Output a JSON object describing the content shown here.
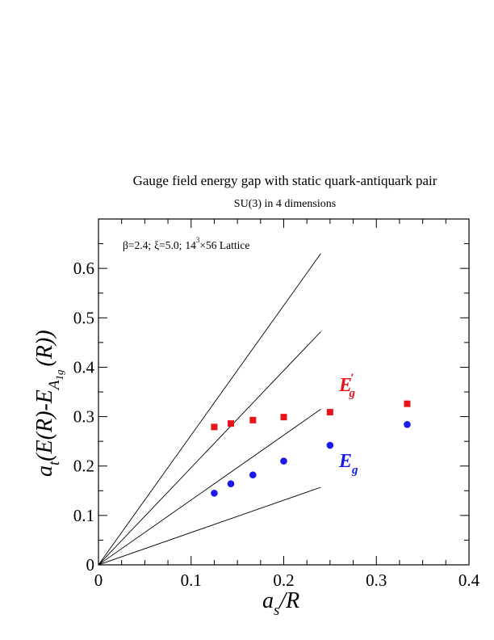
{
  "chart_data": {
    "type": "scatter",
    "title": "Gauge field energy gap with static quark-antiquark pair",
    "subtitle": "SU(3) in 4 dimensions",
    "annotation": {
      "beta": "β=2.4;",
      "xi": "ξ=5.0;",
      "lattice_base": "14",
      "lattice_exp": "3",
      "lattice_rest": "×56 Lattice"
    },
    "xlabel": {
      "main": "a",
      "sub": "s",
      "rest": "/R"
    },
    "ylabel": {
      "a": "a",
      "t": "t",
      "left": "(E(R)-E",
      "A": "A",
      "one": "1",
      "g": "g",
      "right": "(R))"
    },
    "xlim": [
      0,
      0.4
    ],
    "ylim": [
      0,
      0.7
    ],
    "x_ticks": [
      0,
      0.1,
      0.2,
      0.3,
      0.4
    ],
    "x_tick_labels": [
      "0",
      "0.1",
      "0.2",
      "0.3",
      "0.4"
    ],
    "y_ticks": [
      0,
      0.1,
      0.2,
      0.3,
      0.4,
      0.5,
      0.6
    ],
    "y_tick_labels": [
      "0",
      "0.1",
      "0.2",
      "0.3",
      "0.4",
      "0.5",
      "0.6"
    ],
    "series": [
      {
        "label_main": "E",
        "label_prime": "′",
        "label_sub": "g",
        "marker": "square",
        "color": "#e8141a",
        "x": [
          0.125,
          0.1429,
          0.1667,
          0.2,
          0.25,
          0.3333
        ],
        "y": [
          0.279,
          0.286,
          0.293,
          0.299,
          0.309,
          0.326
        ]
      },
      {
        "label_main": "E",
        "label_sub": "g",
        "marker": "circle",
        "color": "#1a1aee",
        "x": [
          0.125,
          0.1429,
          0.1667,
          0.2,
          0.25,
          0.3333
        ],
        "y": [
          0.145,
          0.164,
          0.182,
          0.21,
          0.242,
          0.284
        ]
      }
    ],
    "reference_lines": [
      {
        "x": [
          0,
          0.24
        ],
        "y": [
          0,
          0.63
        ]
      },
      {
        "x": [
          0,
          0.24
        ],
        "y": [
          0,
          0.472
        ]
      },
      {
        "x": [
          0,
          0.24
        ],
        "y": [
          0,
          0.315
        ]
      },
      {
        "x": [
          0,
          0.24
        ],
        "y": [
          0,
          0.157
        ]
      }
    ]
  }
}
